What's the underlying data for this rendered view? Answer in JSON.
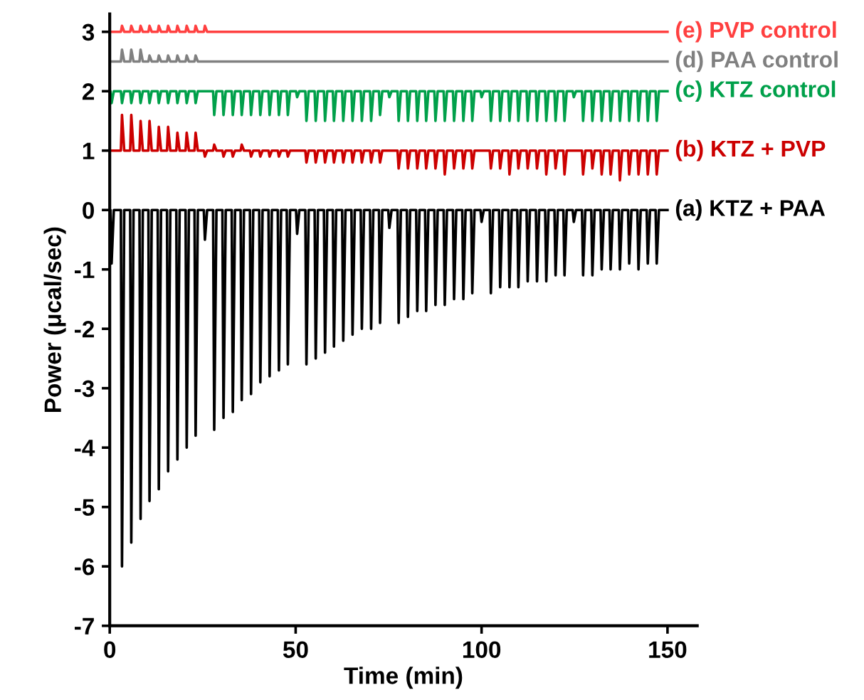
{
  "chart_data": {
    "type": "line",
    "xlabel": "Time (min)",
    "ylabel": "Power (μcal/sec)",
    "xlim": [
      0,
      158
    ],
    "ylim": [
      -7,
      3.3
    ],
    "xticks": [
      0,
      50,
      100,
      150
    ],
    "yticks": [
      -7,
      -6,
      -5,
      -4,
      -3,
      -2,
      -1,
      0,
      1,
      2,
      3
    ],
    "grid": false,
    "legend": false,
    "marker": "none",
    "line_style": "solid",
    "x": [
      0,
      0.2,
      0.5,
      1.1,
      3.0,
      3.3,
      3.9,
      5.5,
      5.8,
      6.4,
      8.0,
      8.3,
      8.9,
      10.4,
      10.7,
      11.3,
      12.9,
      13.2,
      13.8,
      15.4,
      15.7,
      16.3,
      17.9,
      18.2,
      18.8,
      20.4,
      20.7,
      21.3,
      22.8,
      23.1,
      23.7,
      25.3,
      25.6,
      26.2,
      27.8,
      28.1,
      28.7,
      30.3,
      30.6,
      31.2,
      32.8,
      33.1,
      33.7,
      35.2,
      35.5,
      36.1,
      37.7,
      38.0,
      38.6,
      40.2,
      40.5,
      41.1,
      42.7,
      43.0,
      43.6,
      45.2,
      45.5,
      46.1,
      47.6,
      47.9,
      48.5,
      50.1,
      50.4,
      51.0,
      52.6,
      52.9,
      53.5,
      55.1,
      55.4,
      56.0,
      57.6,
      57.9,
      58.5,
      60.0,
      60.3,
      60.9,
      62.5,
      62.8,
      63.4,
      65.0,
      65.3,
      65.9,
      67.5,
      67.8,
      68.4,
      70.0,
      70.3,
      70.9,
      72.4,
      72.7,
      73.3,
      74.9,
      75.2,
      75.8,
      77.4,
      77.7,
      78.3,
      79.9,
      80.2,
      80.8,
      82.4,
      82.7,
      83.3,
      84.8,
      85.1,
      85.7,
      87.3,
      87.6,
      88.2,
      89.8,
      90.1,
      90.7,
      92.3,
      92.6,
      93.2,
      94.8,
      95.1,
      95.7,
      97.2,
      97.5,
      98.1,
      99.7,
      100.0,
      100.6,
      102.2,
      102.5,
      103.1,
      104.7,
      105.0,
      105.6,
      107.2,
      107.5,
      108.1,
      109.6,
      109.9,
      110.5,
      112.1,
      112.4,
      113.0,
      114.6,
      114.9,
      115.5,
      117.1,
      117.4,
      118.0,
      119.6,
      119.9,
      120.5,
      122.0,
      122.3,
      122.9,
      124.5,
      124.8,
      125.4,
      127.0,
      127.3,
      127.9,
      129.5,
      129.8,
      130.4,
      132.0,
      132.3,
      132.9,
      134.4,
      134.7,
      135.3,
      136.9,
      137.2,
      137.8,
      139.4,
      139.7,
      140.3,
      141.9,
      142.2,
      142.8,
      144.4,
      144.7,
      145.3,
      146.8,
      147.1,
      147.7,
      150
    ],
    "series": [
      {
        "name": "(e) PVP control",
        "color": "#ff4040",
        "x": [
          0,
          3.0,
          3.3,
          3.9,
          5.5,
          5.8,
          6.4,
          8.0,
          8.3,
          8.9,
          10.4,
          10.7,
          11.3,
          12.9,
          13.2,
          13.8,
          15.4,
          15.7,
          16.3,
          17.9,
          18.2,
          18.8,
          20.4,
          20.7,
          21.3,
          22.8,
          23.1,
          23.7,
          25.3,
          25.6,
          26.2,
          150
        ],
        "values": [
          3.0,
          3.0,
          3.1,
          3.0,
          3.0,
          3.1,
          3.0,
          3.0,
          3.1,
          3.0,
          3.0,
          3.1,
          3.0,
          3.0,
          3.1,
          3.0,
          3.0,
          3.1,
          3.0,
          3.0,
          3.1,
          3.0,
          3.0,
          3.1,
          3.0,
          3.0,
          3.1,
          3.0,
          3.0,
          3.1,
          3.0,
          3.0
        ]
      },
      {
        "name": "(d) PAA control",
        "color": "#808080",
        "x": [
          0,
          3.0,
          3.3,
          3.9,
          5.5,
          5.8,
          6.4,
          8.0,
          8.3,
          8.9,
          10.4,
          10.7,
          11.3,
          12.9,
          13.2,
          13.8,
          15.4,
          15.7,
          16.3,
          17.9,
          18.2,
          18.8,
          20.4,
          20.7,
          21.3,
          22.8,
          23.1,
          23.7,
          150
        ],
        "values": [
          2.5,
          2.5,
          2.7,
          2.5,
          2.5,
          2.7,
          2.5,
          2.5,
          2.7,
          2.5,
          2.5,
          2.6,
          2.5,
          2.5,
          2.6,
          2.5,
          2.5,
          2.6,
          2.5,
          2.5,
          2.6,
          2.5,
          2.5,
          2.6,
          2.5,
          2.5,
          2.6,
          2.5,
          2.5
        ]
      },
      {
        "name": "(c) KTZ control",
        "color": "#00a04a",
        "values": [
          2,
          2,
          1.8,
          2,
          2,
          1.8,
          2,
          2,
          1.8,
          2,
          2,
          1.8,
          2,
          2,
          1.8,
          2,
          2,
          1.8,
          2,
          2,
          1.8,
          2,
          2,
          1.8,
          2,
          2,
          1.8,
          2,
          2,
          1.8,
          2,
          2,
          2.0,
          2,
          2,
          1.6,
          2,
          2,
          1.6,
          2,
          2,
          1.6,
          2,
          2,
          1.6,
          2,
          2,
          1.6,
          2,
          2,
          1.6,
          2,
          2,
          1.6,
          2,
          2,
          1.6,
          2,
          2,
          1.6,
          2,
          2,
          1.9,
          2,
          2,
          1.5,
          2,
          2,
          1.5,
          2,
          2,
          1.5,
          2,
          2,
          1.5,
          2,
          2,
          1.5,
          2,
          2,
          1.5,
          2,
          2,
          1.5,
          2,
          2,
          1.5,
          2,
          2,
          1.6,
          2,
          2,
          1.9,
          2,
          2,
          1.5,
          2,
          2,
          1.5,
          2,
          2,
          1.5,
          2,
          2,
          1.5,
          2,
          2,
          1.5,
          2,
          2,
          1.5,
          2,
          2,
          1.5,
          2,
          2,
          1.5,
          2,
          2,
          1.5,
          2,
          2,
          1.9,
          2,
          2,
          1.5,
          2,
          2,
          1.5,
          2,
          2,
          1.5,
          2,
          2,
          1.5,
          2,
          2,
          1.5,
          2,
          2,
          1.5,
          2,
          2,
          1.5,
          2,
          2,
          1.5,
          2,
          2,
          1.5,
          2,
          2,
          1.9,
          2,
          2,
          1.5,
          2,
          2,
          1.5,
          2,
          2,
          1.5,
          2,
          2,
          1.5,
          2,
          2,
          1.5,
          2,
          2,
          1.5,
          2,
          2,
          1.5,
          2,
          2,
          1.5,
          2,
          2,
          1.5,
          2,
          2
        ]
      },
      {
        "name": "(b) KTZ + PVP",
        "color": "#cc0000",
        "values": [
          1,
          1,
          1.0,
          1,
          1,
          1.6,
          1,
          1,
          1.6,
          1,
          1,
          1.5,
          1,
          1,
          1.5,
          1,
          1,
          1.4,
          1,
          1,
          1.4,
          1,
          1,
          1.3,
          1,
          1,
          1.3,
          1,
          1,
          1.3,
          1,
          1,
          0.9,
          1,
          1,
          1.1,
          1,
          1,
          0.9,
          1,
          1,
          0.9,
          1,
          1,
          1.1,
          1,
          1,
          0.9,
          1,
          1,
          0.9,
          1,
          1,
          0.9,
          1,
          1,
          0.9,
          1,
          1,
          0.9,
          1,
          1,
          1.0,
          1,
          1,
          0.8,
          1,
          1,
          0.8,
          1,
          1,
          0.8,
          1,
          1,
          0.8,
          1,
          1,
          0.8,
          1,
          1,
          0.8,
          1,
          1,
          0.8,
          1,
          1,
          0.8,
          1,
          1,
          0.8,
          1,
          1,
          1.0,
          1,
          1,
          0.7,
          1,
          1,
          0.7,
          1,
          1,
          0.7,
          1,
          1,
          0.7,
          1,
          1,
          0.7,
          1,
          1,
          0.6,
          1,
          1,
          0.7,
          1,
          1,
          0.7,
          1,
          1,
          0.7,
          1,
          1,
          1.0,
          1,
          1,
          0.7,
          1,
          1,
          0.7,
          1,
          1,
          0.6,
          1,
          1,
          0.7,
          1,
          1,
          0.7,
          1,
          1,
          0.7,
          1,
          1,
          0.6,
          1,
          1,
          0.7,
          1,
          1,
          0.6,
          1,
          1,
          1.0,
          1,
          1,
          0.6,
          1,
          1,
          0.7,
          1,
          1,
          0.6,
          1,
          1,
          0.6,
          1,
          1,
          0.5,
          1,
          1,
          0.6,
          1,
          1,
          0.6,
          1,
          1,
          0.6,
          1,
          1,
          0.6,
          1,
          1
        ]
      },
      {
        "name": "(a) KTZ + PAA",
        "color": "#000000",
        "values": [
          0,
          0,
          -0.9,
          0,
          0,
          -6.0,
          0,
          0,
          -5.6,
          0,
          0,
          -5.2,
          0,
          0,
          -4.9,
          0,
          0,
          -4.7,
          0,
          0,
          -4.4,
          0,
          0,
          -4.2,
          0,
          0,
          -4.0,
          0,
          0,
          -3.8,
          0,
          0,
          -0.5,
          0,
          0,
          -3.7,
          0,
          0,
          -3.5,
          0,
          0,
          -3.4,
          0,
          0,
          -3.2,
          0,
          0,
          -3.1,
          0,
          0,
          -2.9,
          0,
          0,
          -2.8,
          0,
          0,
          -2.7,
          0,
          0,
          -2.6,
          0,
          0,
          -0.4,
          0,
          0,
          -2.6,
          0,
          0,
          -2.5,
          0,
          0,
          -2.4,
          0,
          0,
          -2.3,
          0,
          0,
          -2.2,
          0,
          0,
          -2.1,
          0,
          0,
          -2.0,
          0,
          0,
          -2.0,
          0,
          0,
          -1.9,
          0,
          0,
          -0.3,
          0,
          0,
          -1.9,
          0,
          0,
          -1.8,
          0,
          0,
          -1.7,
          0,
          0,
          -1.7,
          0,
          0,
          -1.6,
          0,
          0,
          -1.6,
          0,
          0,
          -1.5,
          0,
          0,
          -1.5,
          0,
          0,
          -1.4,
          0,
          0,
          -0.2,
          0,
          0,
          -1.4,
          0,
          0,
          -1.3,
          0,
          0,
          -1.3,
          0,
          0,
          -1.3,
          0,
          0,
          -1.2,
          0,
          0,
          -1.2,
          0,
          0,
          -1.2,
          0,
          0,
          -1.1,
          0,
          0,
          -1.1,
          0,
          0,
          -0.2,
          0,
          0,
          -1.1,
          0,
          0,
          -1.1,
          0,
          0,
          -1.0,
          0,
          0,
          -1.0,
          0,
          0,
          -1.0,
          0,
          0,
          -0.9,
          0,
          0,
          -1.0,
          0,
          0,
          -0.9,
          0,
          0,
          -0.9,
          0,
          0
        ]
      }
    ]
  }
}
